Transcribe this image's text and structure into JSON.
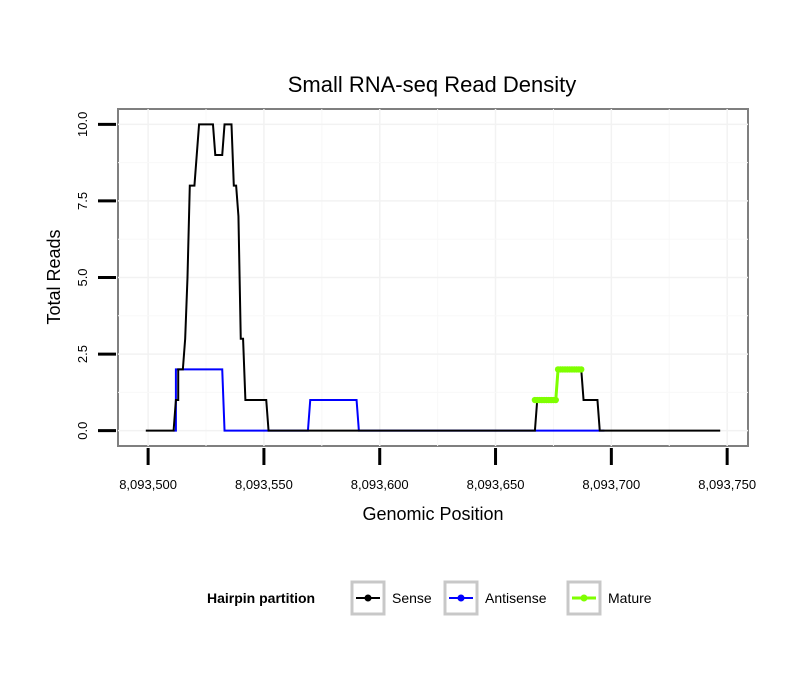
{
  "chart_data": {
    "type": "line",
    "title": "Small RNA-seq Read Density",
    "xlabel": "Genomic Position",
    "ylabel": "Total Reads",
    "xlim": [
      8093487,
      8093759
    ],
    "ylim": [
      -0.5,
      10.5
    ],
    "x_ticks": [
      8093500,
      8093550,
      8093600,
      8093650,
      8093700,
      8093750
    ],
    "x_tick_labels": [
      "8,093,500",
      "8,093,550",
      "8,093,600",
      "8,093,650",
      "8,093,700",
      "8,093,750"
    ],
    "y_ticks": [
      0,
      2.5,
      5,
      7.5,
      10
    ],
    "y_tick_labels": [
      "0.0",
      "2.5",
      "5.0",
      "7.5",
      "10.0"
    ],
    "grid": true,
    "legend_position": "bottom",
    "legend_title": "Hairpin partition",
    "series": [
      {
        "name": "Sense",
        "color": "#000000",
        "points": [
          [
            8093499,
            0
          ],
          [
            8093511,
            0
          ],
          [
            8093512,
            1
          ],
          [
            8093513,
            1
          ],
          [
            8093513,
            2
          ],
          [
            8093515,
            2
          ],
          [
            8093516,
            3
          ],
          [
            8093517,
            5
          ],
          [
            8093518,
            8
          ],
          [
            8093520,
            8
          ],
          [
            8093521,
            9
          ],
          [
            8093522,
            10
          ],
          [
            8093528,
            10
          ],
          [
            8093529,
            9
          ],
          [
            8093532,
            9
          ],
          [
            8093533,
            10
          ],
          [
            8093536,
            10
          ],
          [
            8093537,
            8
          ],
          [
            8093538,
            8
          ],
          [
            8093539,
            7
          ],
          [
            8093540,
            3
          ],
          [
            8093541,
            3
          ],
          [
            8093542,
            1
          ],
          [
            8093551,
            1
          ],
          [
            8093552,
            0
          ],
          [
            8093667,
            0
          ],
          [
            8093668,
            1
          ],
          [
            8093676,
            1
          ],
          [
            8093677,
            2
          ],
          [
            8093687,
            2
          ],
          [
            8093688,
            1
          ],
          [
            8093694,
            1
          ],
          [
            8093695,
            0
          ],
          [
            8093747,
            0
          ]
        ]
      },
      {
        "name": "Antisense",
        "color": "#0000ff",
        "points": [
          [
            8093511,
            0
          ],
          [
            8093512,
            0
          ],
          [
            8093512,
            2
          ],
          [
            8093532,
            2
          ],
          [
            8093533,
            0
          ],
          [
            8093569,
            0
          ],
          [
            8093570,
            1
          ],
          [
            8093590,
            1
          ],
          [
            8093591,
            0
          ],
          [
            8093697,
            0
          ]
        ]
      },
      {
        "name": "Mature",
        "color": "#7fff00",
        "points": [
          [
            8093667,
            1
          ],
          [
            8093668,
            1
          ],
          [
            8093669,
            1
          ],
          [
            8093670,
            1
          ],
          [
            8093671,
            1
          ],
          [
            8093672,
            1
          ],
          [
            8093673,
            1
          ],
          [
            8093674,
            1
          ],
          [
            8093675,
            1
          ],
          [
            8093676,
            1
          ],
          [
            8093677,
            2
          ],
          [
            8093678,
            2
          ],
          [
            8093679,
            2
          ],
          [
            8093680,
            2
          ],
          [
            8093681,
            2
          ],
          [
            8093682,
            2
          ],
          [
            8093683,
            2
          ],
          [
            8093684,
            2
          ],
          [
            8093685,
            2
          ],
          [
            8093686,
            2
          ],
          [
            8093687,
            2
          ]
        ]
      }
    ]
  }
}
